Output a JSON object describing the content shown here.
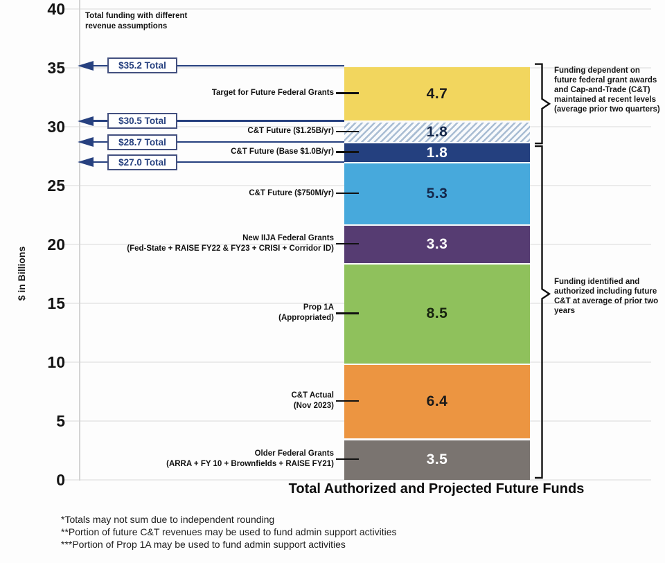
{
  "colors": {
    "accent_navy": "#26407f",
    "connector_black": "#111111",
    "hatch_stripe": "#a9bdd3",
    "hatch_bg": "#f8fafc",
    "gridline": "#ebebeb",
    "background": "#fdfdfd"
  },
  "chart_data": {
    "type": "bar",
    "title": "Total Authorized and Projected Future Funds",
    "ylabel": "$ in Billions",
    "ylim": [
      0,
      40
    ],
    "ytick_step": 5,
    "grid": true,
    "top_note": "Total funding with different revenue assumptions",
    "boundaries": [
      0,
      3.5,
      9.9,
      18.4,
      21.7,
      27.0,
      28.7,
      30.5,
      35.2
    ],
    "segments": [
      {
        "label": "Older Federal Grants",
        "sublabel": "(ARRA + FY 10 + Brownfields + RAISE FY21)",
        "value": 3.5,
        "color": "#7a7470",
        "value_color": "#ffffff",
        "hatch": false
      },
      {
        "label": "C&T Actual",
        "sublabel": "(Nov 2023)",
        "value": 6.4,
        "color": "#ec9541",
        "value_color": "#1a1a1a",
        "hatch": false
      },
      {
        "label": "Prop 1A",
        "sublabel": "(Appropriated)",
        "value": 8.5,
        "color": "#8fc15c",
        "value_color": "#17240f",
        "hatch": false
      },
      {
        "label": "New IIJA Federal Grants",
        "sublabel": "(Fed-State + RAISE FY22 & FY23 + CRISI + Corridor ID)",
        "value": 3.3,
        "color": "#563c72",
        "value_color": "#ffffff",
        "hatch": false
      },
      {
        "label": "C&T Future ($750M/yr)",
        "sublabel": "",
        "value": 5.3,
        "color": "#47a9dc",
        "value_color": "#15284b",
        "hatch": false
      },
      {
        "label": "C&T Future (Base $1.0B/yr)",
        "sublabel": "",
        "value": 1.8,
        "color": "#24407f",
        "value_color": "#ffffff",
        "hatch": false
      },
      {
        "label": "C&T Future ($1.25B/yr)",
        "sublabel": "",
        "value": 1.8,
        "color": "hatch",
        "value_color": "#15284b",
        "hatch": true
      },
      {
        "label": "Target for Future Federal Grants",
        "sublabel": "",
        "value": 4.7,
        "color": "#f2d65e",
        "value_color": "#1a1a1a",
        "hatch": false
      }
    ],
    "totals": [
      {
        "label": "$27.0 Total",
        "value": 27.0
      },
      {
        "label": "$28.7 Total",
        "value": 28.7
      },
      {
        "label": "$30.5 Total",
        "value": 30.5
      },
      {
        "label": "$35.2 Total",
        "value": 35.2
      }
    ],
    "brackets": [
      {
        "text": "Funding dependent on future federal grant awards and Cap-and-Trade (C&T) maintained at recent levels (average prior two quarters)",
        "from": 28.7,
        "to": 35.2,
        "pointer": 31.95
      },
      {
        "text": "Funding identified and authorized including future C&T at average of prior two years",
        "from": 0,
        "to": 28.7,
        "pointer": 15.8
      }
    ],
    "footnotes": [
      "*Totals may not sum due to independent rounding",
      "**Portion of future C&T revenues may be used to fund admin support activities",
      "***Portion of Prop 1A may be used to fund admin support activities"
    ]
  }
}
